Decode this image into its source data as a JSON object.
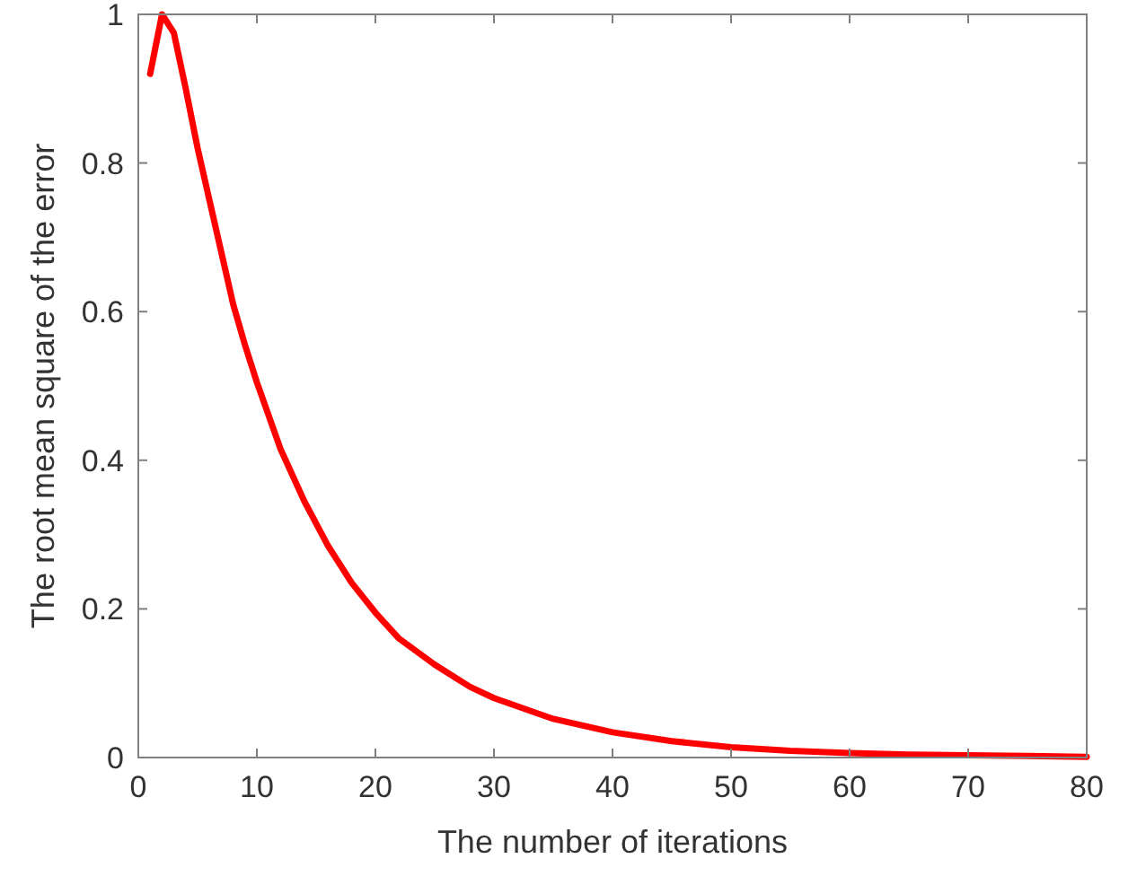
{
  "chart_data": {
    "type": "line",
    "xlabel": "The number of iterations",
    "ylabel": "The root mean square of the error",
    "xlim": [
      0,
      80
    ],
    "xticks": [
      0,
      10,
      20,
      30,
      40,
      50,
      60,
      70,
      80
    ],
    "ylim": [
      0,
      1
    ],
    "yticks": [
      0,
      0.2,
      0.4,
      0.6,
      0.8,
      1
    ],
    "grid": false,
    "marker": "none",
    "line_style": "solid",
    "series": [
      {
        "color": "#ff0000",
        "x": [
          1,
          2,
          3,
          4,
          5,
          6,
          7,
          8,
          9,
          10,
          12,
          14,
          16,
          18,
          20,
          22,
          25,
          28,
          30,
          35,
          40,
          45,
          50,
          55,
          60,
          65,
          70,
          75,
          80
        ],
        "values": [
          0.92,
          1.0,
          0.975,
          0.9,
          0.82,
          0.75,
          0.68,
          0.61,
          0.555,
          0.505,
          0.415,
          0.345,
          0.285,
          0.235,
          0.195,
          0.16,
          0.125,
          0.095,
          0.08,
          0.052,
          0.034,
          0.022,
          0.014,
          0.009,
          0.006,
          0.004,
          0.003,
          0.002,
          0.001
        ]
      }
    ]
  }
}
